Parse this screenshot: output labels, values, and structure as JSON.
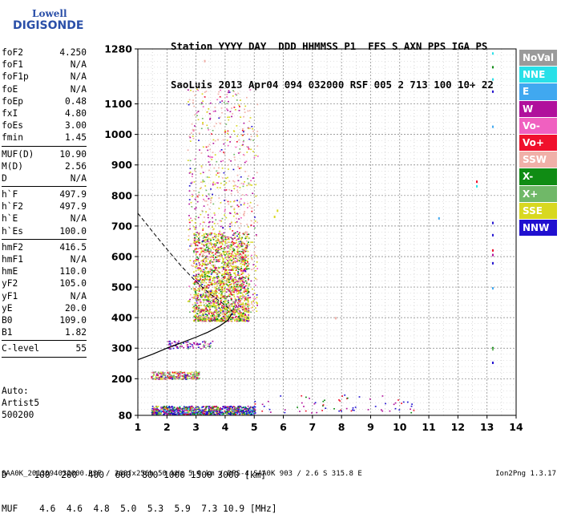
{
  "logo": {
    "top": "Lowell",
    "bottom": "DIGISONDE"
  },
  "header": {
    "line1": "Station YYYY DAY  DDD HHMMSS P1  FFS S AXN PPS IGA PS",
    "line2": "SaoLuis 2013 Apr04 094 032000 RSF 005 2 713 100 10+ 22"
  },
  "params": {
    "group1": [
      {
        "label": "foF2",
        "value": "4.250"
      },
      {
        "label": "foF1",
        "value": "N/A"
      },
      {
        "label": "foF1p",
        "value": "N/A"
      },
      {
        "label": "foE",
        "value": "N/A"
      },
      {
        "label": "foEp",
        "value": "0.48"
      },
      {
        "label": "fxI",
        "value": "4.80"
      },
      {
        "label": "foEs",
        "value": "3.00"
      },
      {
        "label": "fmin",
        "value": "1.45"
      }
    ],
    "group2": [
      {
        "label": "MUF(D)",
        "value": "10.90"
      },
      {
        "label": "M(D)",
        "value": "2.56"
      },
      {
        "label": "D",
        "value": "N/A"
      }
    ],
    "group3": [
      {
        "label": "h`F",
        "value": "497.9"
      },
      {
        "label": "h`F2",
        "value": "497.9"
      },
      {
        "label": "h`E",
        "value": "N/A"
      },
      {
        "label": "h`Es",
        "value": "100.0"
      }
    ],
    "group4": [
      {
        "label": "hmF2",
        "value": "416.5"
      },
      {
        "label": "hmF1",
        "value": "N/A"
      },
      {
        "label": "hmE",
        "value": "110.0"
      },
      {
        "label": "yF2",
        "value": "105.0"
      },
      {
        "label": "yF1",
        "value": "N/A"
      },
      {
        "label": "yE",
        "value": "20.0"
      },
      {
        "label": "B0",
        "value": "109.0"
      },
      {
        "label": "B1",
        "value": "1.82"
      }
    ],
    "group5": [
      {
        "label": "C-level",
        "value": "55"
      }
    ]
  },
  "auto": {
    "line1": "Auto:",
    "line2": "Artist5",
    "line3": "500200"
  },
  "dmuf": {
    "d_row": "D     100  200  400  600  800 1000 1500 3000 [km]",
    "muf_row": "MUF    4.6  4.6  4.8  5.0  5.3  5.9  7.3 10.9 [MHz]"
  },
  "footer": "SAA0K_2013094032000.RSF / 260fx256h 50 kHz 5.0 km / DPS-4 SAA0K 903 / 2.6 S 315.8 E",
  "version": "Ion2Png 1.3.17",
  "legend": [
    {
      "label": "NoVal",
      "color": "#9a9a9a"
    },
    {
      "label": "NNE",
      "color": "#28e0e8"
    },
    {
      "label": "E",
      "color": "#40a8f0"
    },
    {
      "label": "W",
      "color": "#b0109c"
    },
    {
      "label": "Vo-",
      "color": "#f060c0"
    },
    {
      "label": "Vo+",
      "color": "#f0102c"
    },
    {
      "label": "SSW",
      "color": "#f0b0a8"
    },
    {
      "label": "X-",
      "color": "#108c14"
    },
    {
      "label": "X+",
      "color": "#70b868"
    },
    {
      "label": "SSE",
      "color": "#d8d820"
    },
    {
      "label": "NNW",
      "color": "#2010d0"
    }
  ],
  "chart_data": {
    "type": "scatter",
    "title": "",
    "xlabel": "",
    "ylabel": "",
    "xlim": [
      1,
      14
    ],
    "ylim": [
      80,
      1280
    ],
    "x_ticks": [
      1,
      2,
      3,
      4,
      5,
      6,
      7,
      8,
      9,
      10,
      11,
      12,
      13,
      14
    ],
    "y_ticks": [
      80,
      200,
      300,
      400,
      500,
      600,
      700,
      800,
      900,
      1000,
      1100,
      1280
    ],
    "x_minor_step": 0.5,
    "y_minor_step": 20,
    "grid": true,
    "legend_position": "right",
    "profile_curve": {
      "name": "",
      "style": "solid",
      "points": [
        [
          1.0,
          262
        ],
        [
          1.5,
          280
        ],
        [
          2.0,
          300
        ],
        [
          2.5,
          318
        ],
        [
          3.0,
          336
        ],
        [
          3.4,
          352
        ],
        [
          3.8,
          372
        ],
        [
          4.1,
          392
        ],
        [
          4.25,
          416
        ]
      ]
    },
    "muf_curve": {
      "name": "",
      "style": "dashed",
      "points": [
        [
          1.0,
          742
        ],
        [
          1.5,
          682
        ],
        [
          2.0,
          624
        ],
        [
          2.5,
          568
        ],
        [
          3.0,
          518
        ],
        [
          3.5,
          476
        ],
        [
          3.9,
          448
        ],
        [
          4.25,
          420
        ]
      ]
    },
    "echo_regions": [
      {
        "name": "F-trace main",
        "x": [
          2.9,
          4.8
        ],
        "y": [
          390,
          680
        ],
        "density": 1800,
        "weights": {
          "SSE": 0.45,
          "X-": 0.18,
          "Vo+": 0.12,
          "W": 0.1,
          "X+": 0.08,
          "SSW": 0.05,
          "NNW": 0.02
        }
      },
      {
        "name": "F-trace spread",
        "x": [
          2.7,
          5.1
        ],
        "y": [
          420,
          1150
        ],
        "density": 900,
        "weights": {
          "SSW": 0.3,
          "SSE": 0.25,
          "W": 0.15,
          "Vo-": 0.1,
          "X+": 0.1,
          "Vo+": 0.05,
          "NNW": 0.05
        }
      },
      {
        "name": "lower trace",
        "x": [
          2.0,
          3.6
        ],
        "y": [
          300,
          325
        ],
        "density": 90,
        "weights": {
          "W": 0.4,
          "NNW": 0.3,
          "SSW": 0.15,
          "X+": 0.15
        }
      },
      {
        "name": "Es trace",
        "x": [
          1.45,
          3.1
        ],
        "y": [
          200,
          225
        ],
        "density": 260,
        "weights": {
          "X+": 0.3,
          "W": 0.2,
          "Vo+": 0.15,
          "SSE": 0.15,
          "NNW": 0.1,
          "SSW": 0.1
        }
      },
      {
        "name": "E-region",
        "x": [
          1.45,
          5.0
        ],
        "y": [
          85,
          112
        ],
        "density": 900,
        "weights": {
          "NNW": 0.28,
          "W": 0.2,
          "X-": 0.14,
          "SSE": 0.12,
          "Vo+": 0.08,
          "X+": 0.08,
          "E": 0.05,
          "NNE": 0.05
        }
      },
      {
        "name": "E-region tail",
        "x": [
          5.0,
          10.5
        ],
        "y": [
          90,
          150
        ],
        "density": 70,
        "weights": {
          "W": 0.4,
          "NNW": 0.3,
          "Vo+": 0.2,
          "X-": 0.1
        }
      }
    ],
    "isolated_points": [
      {
        "x": 13.2,
        "y": 1265,
        "dir": "NNE"
      },
      {
        "x": 13.2,
        "y": 1220,
        "dir": "X-"
      },
      {
        "x": 13.2,
        "y": 1180,
        "dir": "NNE"
      },
      {
        "x": 13.2,
        "y": 1140,
        "dir": "NNW"
      },
      {
        "x": 13.2,
        "y": 1025,
        "dir": "E"
      },
      {
        "x": 12.65,
        "y": 845,
        "dir": "Vo+"
      },
      {
        "x": 12.65,
        "y": 830,
        "dir": "NNE"
      },
      {
        "x": 11.35,
        "y": 725,
        "dir": "E"
      },
      {
        "x": 13.2,
        "y": 710,
        "dir": "NNW"
      },
      {
        "x": 13.2,
        "y": 670,
        "dir": "NNW"
      },
      {
        "x": 13.2,
        "y": 620,
        "dir": "Vo+"
      },
      {
        "x": 13.2,
        "y": 605,
        "dir": "W"
      },
      {
        "x": 13.2,
        "y": 578,
        "dir": "NNW"
      },
      {
        "x": 13.2,
        "y": 496,
        "dir": "E"
      },
      {
        "x": 7.8,
        "y": 398,
        "dir": "SSW"
      },
      {
        "x": 13.2,
        "y": 300,
        "dir": "X-"
      },
      {
        "x": 13.2,
        "y": 296,
        "dir": "X+"
      },
      {
        "x": 13.2,
        "y": 252,
        "dir": "NNW"
      },
      {
        "x": 5.8,
        "y": 750,
        "dir": "SSE"
      },
      {
        "x": 5.7,
        "y": 730,
        "dir": "SSE"
      },
      {
        "x": 3.3,
        "y": 1240,
        "dir": "SSW"
      }
    ]
  }
}
